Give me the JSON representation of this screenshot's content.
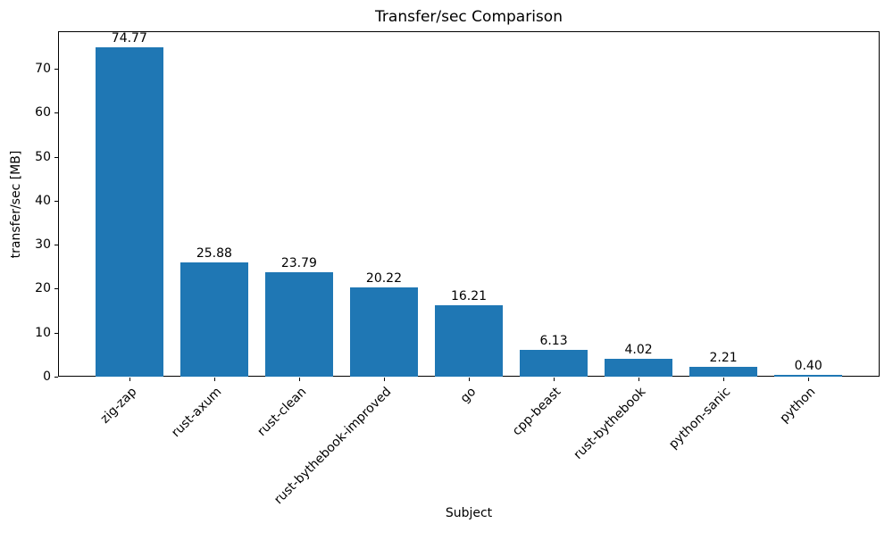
{
  "chart_data": {
    "type": "bar",
    "title": "Transfer/sec Comparison",
    "xlabel": "Subject",
    "ylabel": "transfer/sec [MB]",
    "categories": [
      "zig-zap",
      "rust-axum",
      "rust-clean",
      "rust-bythebook-improved",
      "go",
      "cpp-beast",
      "rust-bythebook",
      "python-sanic",
      "python"
    ],
    "values": [
      74.77,
      25.88,
      23.79,
      20.22,
      16.21,
      6.13,
      4.02,
      2.21,
      0.4
    ],
    "bar_labels": [
      "74.77",
      "25.88",
      "23.79",
      "20.22",
      "16.21",
      "6.13",
      "4.02",
      "2.21",
      "0.40"
    ],
    "yticks": [
      0,
      10,
      20,
      30,
      40,
      50,
      60,
      70
    ],
    "ylim": [
      0,
      78.5
    ],
    "bar_color": "#1f77b4",
    "axis_color": "#000000",
    "grid": false,
    "legend_position": "none",
    "xtick_rotation_deg": 45
  }
}
